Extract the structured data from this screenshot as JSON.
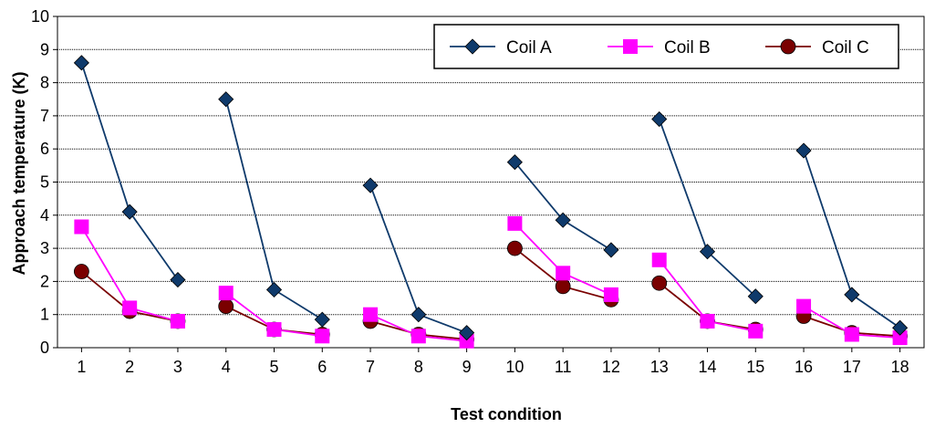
{
  "chart_data": {
    "type": "line",
    "title": "",
    "xlabel": "Test condition",
    "ylabel": "Approach temperature (K)",
    "ylim": [
      0,
      10
    ],
    "yticks": [
      0,
      1,
      2,
      3,
      4,
      5,
      6,
      7,
      8,
      9,
      10
    ],
    "grid": "horizontal",
    "legend_position": "top-right",
    "x": [
      1,
      2,
      3,
      4,
      5,
      6,
      7,
      8,
      9,
      10,
      11,
      12,
      13,
      14,
      15,
      16,
      17,
      18
    ],
    "groups": [
      [
        1,
        2,
        3
      ],
      [
        4,
        5,
        6
      ],
      [
        7,
        8,
        9
      ],
      [
        10,
        11,
        12
      ],
      [
        13,
        14,
        15
      ],
      [
        16,
        17,
        18
      ]
    ],
    "series": [
      {
        "name": "Coil A",
        "color": "#0f3a6b",
        "marker": "diamond",
        "values": [
          8.6,
          4.1,
          2.05,
          7.5,
          1.75,
          0.85,
          4.9,
          1.0,
          0.45,
          5.6,
          3.85,
          2.95,
          6.9,
          2.9,
          1.55,
          5.95,
          1.6,
          0.6
        ]
      },
      {
        "name": "Coil B",
        "color": "#ff00ff",
        "marker": "square",
        "values": [
          3.65,
          1.2,
          0.8,
          1.65,
          0.55,
          0.35,
          1.0,
          0.35,
          0.2,
          3.75,
          2.25,
          1.6,
          2.65,
          0.8,
          0.5,
          1.25,
          0.4,
          0.3
        ]
      },
      {
        "name": "Coil C",
        "color": "#7a0000",
        "marker": "circle",
        "values": [
          2.3,
          1.1,
          0.8,
          1.25,
          0.55,
          0.4,
          0.8,
          0.4,
          0.25,
          3.0,
          1.85,
          1.45,
          1.95,
          0.8,
          0.55,
          0.95,
          0.45,
          0.35
        ]
      }
    ]
  }
}
